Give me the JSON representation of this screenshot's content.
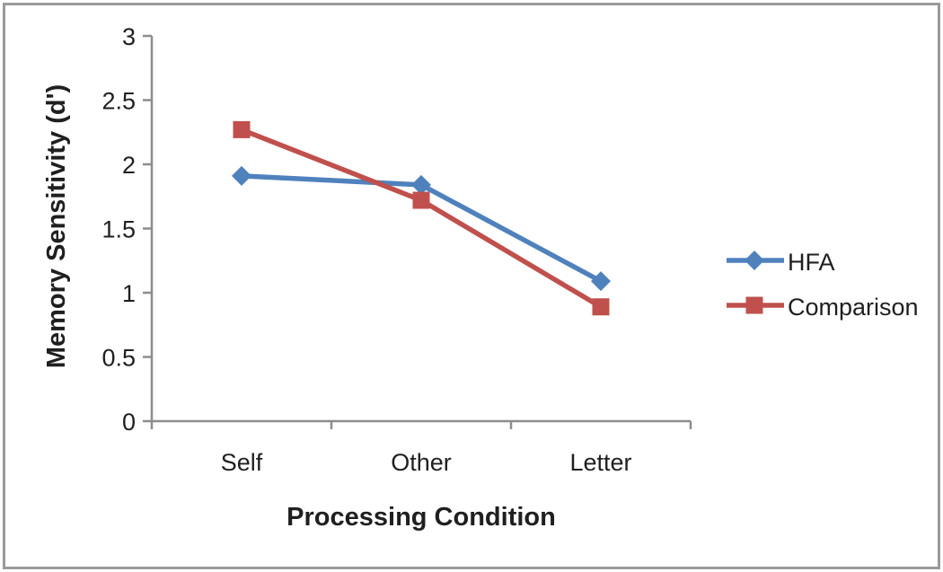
{
  "chart_data": {
    "type": "line",
    "title": "",
    "xlabel": "Processing Condition",
    "ylabel": "Memory Sensitivity (d')",
    "categories": [
      "Self",
      "Other",
      "Letter"
    ],
    "series": [
      {
        "name": "HFA",
        "marker": "diamond",
        "color": "#4F81BD",
        "values": [
          1.91,
          1.84,
          1.09
        ]
      },
      {
        "name": "Comparison",
        "marker": "square",
        "color": "#C0504D",
        "values": [
          2.27,
          1.72,
          0.89
        ]
      }
    ],
    "ylim": [
      0,
      3
    ],
    "ytick_step": 0.5,
    "yticks": [
      "0",
      "0.5",
      "1",
      "1.5",
      "2",
      "2.5",
      "3"
    ],
    "grid": false,
    "legend_position": "right"
  },
  "colors": {
    "axis": "#8d8d8d",
    "text": "#1f1f1f",
    "frame_border": "#9a9a9a",
    "background": "#ffffff"
  }
}
